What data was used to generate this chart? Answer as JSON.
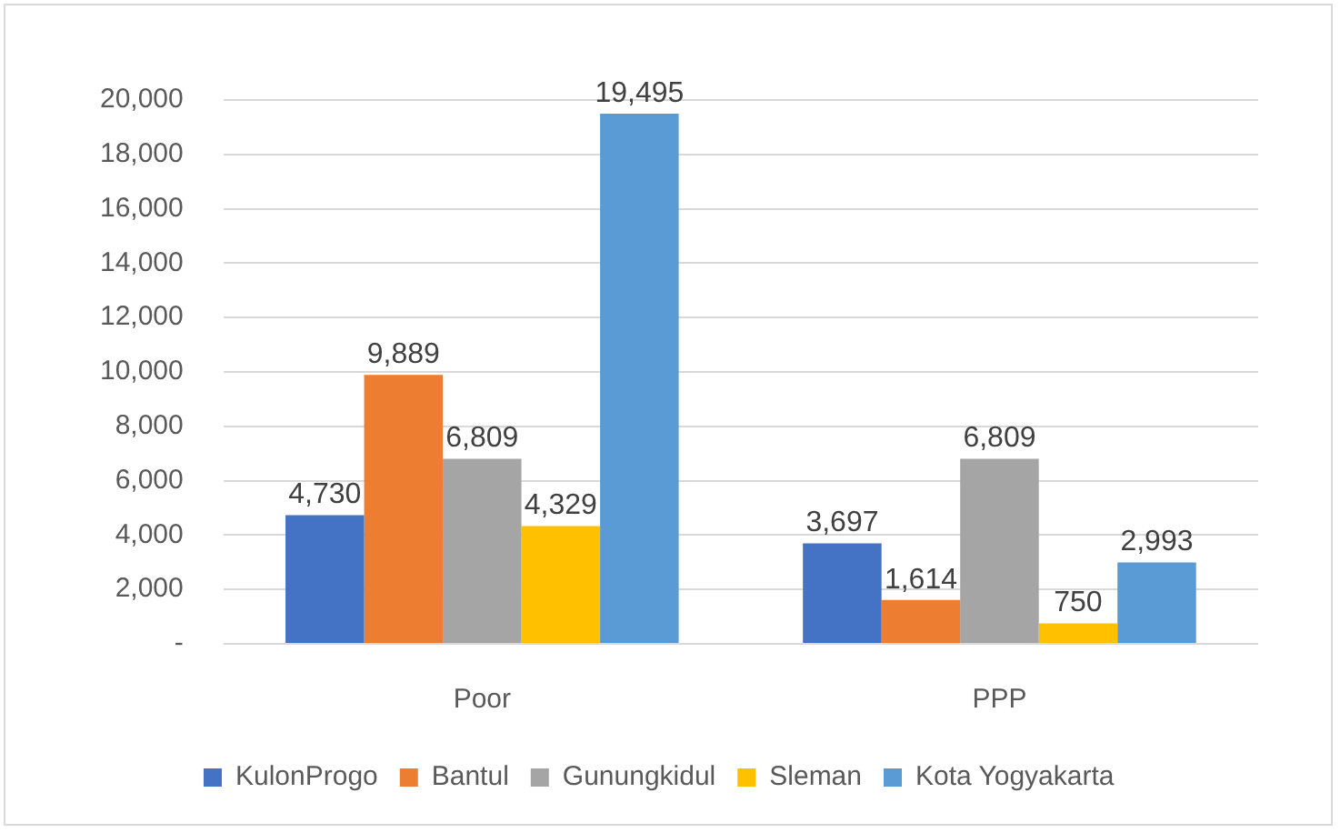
{
  "chart_data": {
    "type": "bar",
    "categories": [
      "Poor",
      "PPP"
    ],
    "series": [
      {
        "name": "KulonProgo",
        "color": "#4472c4",
        "values": [
          4730,
          3697
        ],
        "value_labels": [
          "4,730",
          "3,697"
        ]
      },
      {
        "name": "Bantul",
        "color": "#ed7d31",
        "values": [
          9889,
          1614
        ],
        "value_labels": [
          "9,889",
          "1,614"
        ]
      },
      {
        "name": "Gunungkidul",
        "color": "#a5a5a5",
        "values": [
          6809,
          6809
        ],
        "value_labels": [
          "6,809",
          "6,809"
        ]
      },
      {
        "name": "Sleman",
        "color": "#ffc000",
        "values": [
          4329,
          750
        ],
        "value_labels": [
          "4,329",
          "750"
        ]
      },
      {
        "name": "Kota Yogyakarta",
        "color": "#5b9bd5",
        "values": [
          19495,
          2993
        ],
        "value_labels": [
          "19,495",
          "2,993"
        ]
      }
    ],
    "ylim": [
      0,
      20000
    ],
    "yticks": [
      {
        "value": 0,
        "label": "-"
      },
      {
        "value": 2000,
        "label": "2,000"
      },
      {
        "value": 4000,
        "label": "4,000"
      },
      {
        "value": 6000,
        "label": "6,000"
      },
      {
        "value": 8000,
        "label": "8,000"
      },
      {
        "value": 10000,
        "label": "10,000"
      },
      {
        "value": 12000,
        "label": "12,000"
      },
      {
        "value": 14000,
        "label": "14,000"
      },
      {
        "value": 16000,
        "label": "16,000"
      },
      {
        "value": 18000,
        "label": "18,000"
      },
      {
        "value": 20000,
        "label": "20,000"
      }
    ],
    "grid": "y",
    "legend": "bottom"
  }
}
